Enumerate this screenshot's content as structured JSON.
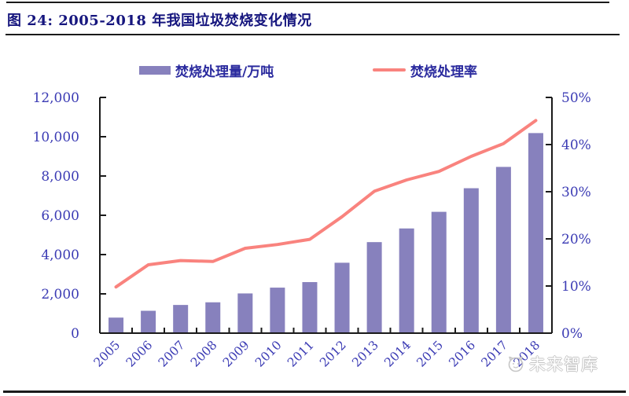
{
  "figure": {
    "title": "图 24: 2005-2018 年我国垃圾焚烧变化情况",
    "source_watermark": "未来智库"
  },
  "legend": [
    {
      "label": "焚烧处理量/万吨",
      "type": "bar",
      "color": "#8781bd"
    },
    {
      "label": "焚烧处理率",
      "type": "line",
      "color": "#f9837e"
    }
  ],
  "colors": {
    "bar": "#8781bd",
    "line": "#f9837e",
    "axis": "#1a1a1a",
    "tick_label": "#3b3bb4",
    "title": "#16167e",
    "watermark": "#c6c6c6"
  },
  "chart_data": {
    "type": "bar",
    "title": "2005-2018 年我国垃圾焚烧变化情况",
    "categories": [
      "2005",
      "2006",
      "2007",
      "2008",
      "2009",
      "2010",
      "2011",
      "2012",
      "2013",
      "2014",
      "2015",
      "2016",
      "2017",
      "2018"
    ],
    "series": [
      {
        "name": "焚烧处理量/万吨",
        "type": "bar",
        "axis": "left",
        "values": [
          791,
          1138,
          1435,
          1570,
          2022,
          2317,
          2599,
          3584,
          4634,
          5330,
          6176,
          7378,
          8463,
          10185
        ]
      },
      {
        "name": "焚烧处理率",
        "type": "line",
        "axis": "right",
        "unit": "%",
        "values": [
          9.8,
          14.5,
          15.4,
          15.2,
          18.0,
          18.8,
          19.9,
          24.7,
          30.1,
          32.5,
          34.3,
          37.5,
          40.2,
          45.1
        ]
      }
    ],
    "left_axis": {
      "min": 0,
      "max": 12000,
      "step": 2000,
      "tick_labels": [
        "0",
        "2,000",
        "4,000",
        "6,000",
        "8,000",
        "10,000",
        "12,000"
      ]
    },
    "right_axis": {
      "min": 0,
      "max": 50,
      "step": 10,
      "tick_labels": [
        "0%",
        "10%",
        "20%",
        "30%",
        "40%",
        "50%"
      ]
    },
    "grid": false,
    "legend_position": "top"
  }
}
